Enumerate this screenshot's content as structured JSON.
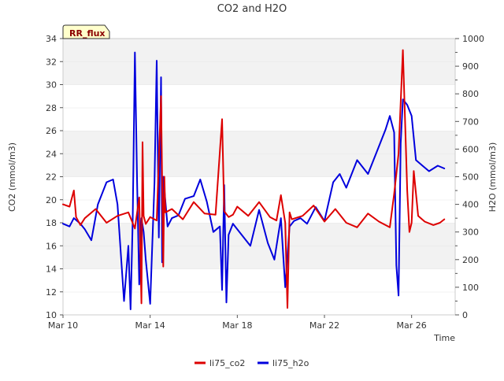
{
  "chart_data": {
    "type": "line",
    "title": "CO2 and H2O",
    "badge": "RR_flux",
    "xlabel": "Time",
    "ylabel_left": "CO2 (mmol/m3)",
    "ylabel_right": "H2O (mmol/m3)",
    "x_range_days": [
      0,
      18
    ],
    "ylim_left": [
      10,
      34
    ],
    "ylim_right": [
      0,
      1000
    ],
    "x_ticks": [
      {
        "day": 0,
        "label": "Mar 10"
      },
      {
        "day": 4,
        "label": "Mar 14"
      },
      {
        "day": 8,
        "label": "Mar 18"
      },
      {
        "day": 12,
        "label": "Mar 22"
      },
      {
        "day": 16,
        "label": "Mar 26"
      }
    ],
    "y_ticks_left": [
      10,
      12,
      14,
      16,
      18,
      20,
      22,
      24,
      26,
      28,
      30,
      32,
      34
    ],
    "y_ticks_right": [
      0,
      100,
      200,
      300,
      400,
      500,
      600,
      700,
      800,
      900,
      1000
    ],
    "grid": "alternating horizontal bands",
    "legend_position": "bottom-center",
    "series": [
      {
        "name": "li75_co2",
        "axis": "left",
        "color": "#dd0000",
        "x": [
          0.0,
          0.3,
          0.5,
          0.6,
          0.8,
          1.0,
          1.5,
          2.0,
          2.5,
          3.0,
          3.3,
          3.5,
          3.6,
          3.65,
          3.7,
          3.8,
          4.0,
          4.3,
          4.5,
          4.6,
          4.65,
          4.7,
          5.0,
          5.5,
          6.0,
          6.5,
          7.0,
          7.3,
          7.4,
          7.6,
          7.8,
          8.0,
          8.5,
          9.0,
          9.5,
          9.8,
          10.0,
          10.2,
          10.3,
          10.4,
          10.5,
          11.0,
          11.5,
          12.0,
          12.5,
          13.0,
          13.5,
          14.0,
          14.5,
          15.0,
          15.2,
          15.4,
          15.6,
          15.8,
          15.9,
          16.0,
          16.1,
          16.3,
          16.6,
          17.0,
          17.3,
          17.5
        ],
        "y": [
          19.6,
          19.4,
          20.8,
          18.5,
          17.8,
          18.4,
          19.2,
          18.0,
          18.6,
          18.9,
          17.5,
          20.2,
          11.0,
          25.0,
          18.6,
          17.9,
          18.5,
          18.2,
          29.0,
          14.2,
          22.0,
          18.9,
          19.2,
          18.3,
          19.8,
          18.8,
          18.7,
          27.0,
          19.0,
          18.5,
          18.7,
          19.4,
          18.6,
          19.8,
          18.5,
          18.2,
          20.4,
          18.0,
          10.6,
          18.9,
          18.3,
          18.6,
          19.5,
          18.1,
          19.2,
          18.0,
          17.6,
          18.8,
          18.1,
          17.6,
          20.5,
          24.0,
          33.0,
          20.8,
          17.2,
          18.0,
          22.5,
          18.6,
          18.1,
          17.8,
          18.0,
          18.3
        ]
      },
      {
        "name": "li75_h2o",
        "axis": "right",
        "color": "#0000dd",
        "x": [
          0.0,
          0.3,
          0.5,
          0.8,
          1.0,
          1.3,
          1.6,
          2.0,
          2.3,
          2.5,
          2.8,
          3.0,
          3.1,
          3.2,
          3.3,
          3.4,
          3.5,
          3.6,
          3.7,
          3.8,
          4.0,
          4.2,
          4.3,
          4.4,
          4.5,
          4.55,
          4.6,
          4.8,
          5.0,
          5.3,
          5.6,
          6.0,
          6.3,
          6.6,
          6.9,
          7.2,
          7.3,
          7.4,
          7.5,
          7.6,
          7.8,
          8.0,
          8.3,
          8.6,
          9.0,
          9.4,
          9.7,
          10.0,
          10.2,
          10.4,
          10.6,
          10.9,
          11.2,
          11.6,
          12.0,
          12.4,
          12.7,
          13.0,
          13.5,
          14.0,
          14.5,
          14.8,
          15.0,
          15.2,
          15.3,
          15.4,
          15.5,
          15.6,
          15.8,
          16.0,
          16.2,
          16.5,
          16.8,
          17.2,
          17.5
        ],
        "y": [
          330,
          320,
          350,
          330,
          310,
          270,
          400,
          480,
          490,
          400,
          50,
          250,
          20,
          340,
          950,
          480,
          110,
          350,
          300,
          200,
          40,
          480,
          920,
          280,
          860,
          190,
          500,
          320,
          350,
          360,
          420,
          430,
          490,
          410,
          300,
          320,
          90,
          470,
          45,
          290,
          330,
          310,
          280,
          250,
          380,
          260,
          200,
          350,
          100,
          320,
          340,
          350,
          330,
          390,
          340,
          480,
          510,
          460,
          560,
          510,
          610,
          670,
          720,
          660,
          180,
          70,
          620,
          780,
          760,
          720,
          560,
          540,
          520,
          540,
          530
        ]
      }
    ]
  }
}
